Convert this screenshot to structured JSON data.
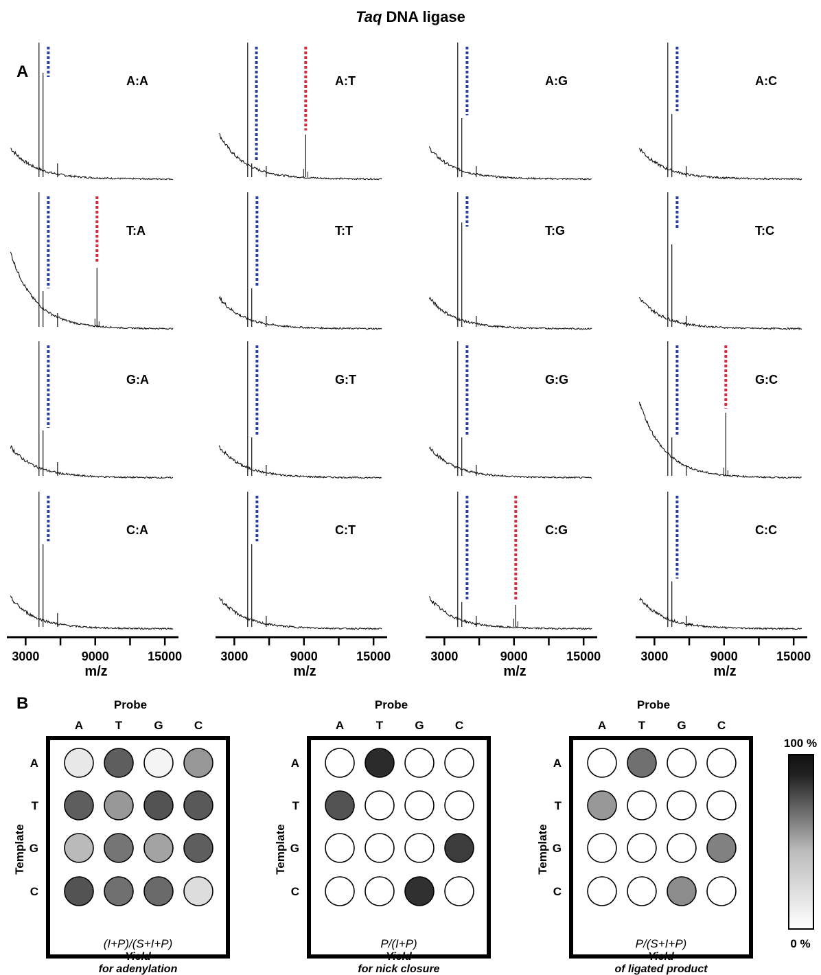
{
  "figure": {
    "title_italic": "Taq",
    "title_rest": " DNA ligase",
    "panel_a": "A",
    "panel_b": "B"
  },
  "colors": {
    "blue_marker": "#2b3fa0",
    "red_marker": "#e0263a",
    "trace": "#111111"
  },
  "chart_data": [
    {
      "type": "line",
      "panel": "A",
      "xlabel": "m/z",
      "xlim": [
        1500,
        15700
      ],
      "xticks": [
        3000,
        6000,
        9000,
        12000,
        15000
      ],
      "xtick_labels": [
        "3000",
        "",
        "9000",
        "",
        "15000"
      ],
      "spectra": [
        {
          "label": "A:A",
          "peaks": [
            {
              "x": 4150,
              "y": 1.0
            },
            {
              "x": 4500,
              "y": 0.78
            },
            {
              "x": 5750,
              "y": 0.12
            }
          ],
          "blue_x": 4600,
          "red_x": null
        },
        {
          "label": "A:T",
          "peaks": [
            {
              "x": 4150,
              "y": 1.0
            },
            {
              "x": 4500,
              "y": 0.12
            },
            {
              "x": 5750,
              "y": 0.1
            },
            {
              "x": 9150,
              "y": 0.33
            }
          ],
          "blue_x": 4550,
          "red_x": 9150
        },
        {
          "label": "A:G",
          "peaks": [
            {
              "x": 4150,
              "y": 1.0
            },
            {
              "x": 4500,
              "y": 0.45
            },
            {
              "x": 5750,
              "y": 0.1
            }
          ],
          "blue_x": 4600,
          "red_x": null
        },
        {
          "label": "A:C",
          "peaks": [
            {
              "x": 4150,
              "y": 1.0
            },
            {
              "x": 4500,
              "y": 0.48
            },
            {
              "x": 5750,
              "y": 0.1
            }
          ],
          "blue_x": 4600,
          "red_x": null
        },
        {
          "label": "T:A",
          "peaks": [
            {
              "x": 4150,
              "y": 1.0
            },
            {
              "x": 4500,
              "y": 0.28
            },
            {
              "x": 5750,
              "y": 0.12
            },
            {
              "x": 9150,
              "y": 0.45
            }
          ],
          "blue_x": 4600,
          "red_x": 9150
        },
        {
          "label": "T:T",
          "peaks": [
            {
              "x": 4150,
              "y": 1.0
            },
            {
              "x": 4500,
              "y": 0.3
            },
            {
              "x": 5750,
              "y": 0.1
            }
          ],
          "blue_x": 4600,
          "red_x": null
        },
        {
          "label": "T:G",
          "peaks": [
            {
              "x": 4150,
              "y": 1.0
            },
            {
              "x": 4500,
              "y": 0.78
            },
            {
              "x": 5750,
              "y": 0.1
            }
          ],
          "blue_x": 4600,
          "red_x": null
        },
        {
          "label": "T:C",
          "peaks": [
            {
              "x": 4150,
              "y": 1.0
            },
            {
              "x": 4500,
              "y": 0.62
            },
            {
              "x": 5750,
              "y": 0.1
            }
          ],
          "blue_x": 4600,
          "red_x": null
        },
        {
          "label": "G:A",
          "peaks": [
            {
              "x": 4150,
              "y": 1.0
            },
            {
              "x": 4500,
              "y": 0.35
            },
            {
              "x": 5750,
              "y": 0.12
            }
          ],
          "blue_x": 4600,
          "red_x": null
        },
        {
          "label": "G:T",
          "peaks": [
            {
              "x": 4150,
              "y": 1.0
            },
            {
              "x": 4500,
              "y": 0.3
            },
            {
              "x": 5750,
              "y": 0.1
            }
          ],
          "blue_x": 4600,
          "red_x": null
        },
        {
          "label": "G:G",
          "peaks": [
            {
              "x": 4150,
              "y": 1.0
            },
            {
              "x": 4500,
              "y": 0.3
            },
            {
              "x": 5750,
              "y": 0.1
            }
          ],
          "blue_x": 4600,
          "red_x": null
        },
        {
          "label": "G:C",
          "peaks": [
            {
              "x": 4150,
              "y": 1.0
            },
            {
              "x": 4500,
              "y": 0.3
            },
            {
              "x": 5750,
              "y": 0.1
            },
            {
              "x": 9150,
              "y": 0.48
            }
          ],
          "blue_x": 4600,
          "red_x": 9150
        },
        {
          "label": "C:A",
          "peaks": [
            {
              "x": 4150,
              "y": 1.0
            },
            {
              "x": 4500,
              "y": 0.62
            },
            {
              "x": 5750,
              "y": 0.12
            }
          ],
          "blue_x": 4600,
          "red_x": null
        },
        {
          "label": "C:T",
          "peaks": [
            {
              "x": 4150,
              "y": 1.0
            },
            {
              "x": 4500,
              "y": 0.62
            },
            {
              "x": 5750,
              "y": 0.1
            }
          ],
          "blue_x": 4600,
          "red_x": null
        },
        {
          "label": "C:G",
          "peaks": [
            {
              "x": 4150,
              "y": 1.0
            },
            {
              "x": 4500,
              "y": 0.2
            },
            {
              "x": 5750,
              "y": 0.1
            },
            {
              "x": 9150,
              "y": 0.18
            }
          ],
          "blue_x": 4600,
          "red_x": 9150
        },
        {
          "label": "C:C",
          "peaks": [
            {
              "x": 4150,
              "y": 1.0
            },
            {
              "x": 4500,
              "y": 0.35
            },
            {
              "x": 5750,
              "y": 0.1
            }
          ],
          "blue_x": 4600,
          "red_x": null
        }
      ]
    },
    {
      "type": "heatmap",
      "panel": "B",
      "probe_label": "Probe",
      "template_label": "Template",
      "probe_bases": [
        "A",
        "T",
        "G",
        "C"
      ],
      "template_bases": [
        "A",
        "T",
        "G",
        "C"
      ],
      "scale_max_label": "100 %",
      "scale_min_label": "0 %",
      "grids": [
        {
          "formula": "(I+P)/(S+I+P)",
          "caption1": "Yield",
          "caption2": "for adenylation",
          "values": [
            [
              0.1,
              0.7,
              0.05,
              0.45
            ],
            [
              0.7,
              0.45,
              0.75,
              0.72
            ],
            [
              0.3,
              0.6,
              0.4,
              0.7
            ],
            [
              0.75,
              0.62,
              0.65,
              0.15
            ]
          ]
        },
        {
          "formula": "P/(I+P)",
          "caption1": "Yield",
          "caption2": "for nick closure",
          "values": [
            [
              0,
              0.92,
              0,
              0
            ],
            [
              0.75,
              0,
              0,
              0
            ],
            [
              0,
              0,
              0,
              0.85
            ],
            [
              0,
              0,
              0.9,
              0
            ]
          ]
        },
        {
          "formula": "P/(S+I+P)",
          "caption1": "Yield",
          "caption2": "of ligated product",
          "values": [
            [
              0,
              0.62,
              0,
              0
            ],
            [
              0.45,
              0,
              0,
              0
            ],
            [
              0,
              0,
              0,
              0.55
            ],
            [
              0,
              0,
              0.5,
              0
            ]
          ]
        }
      ]
    }
  ]
}
